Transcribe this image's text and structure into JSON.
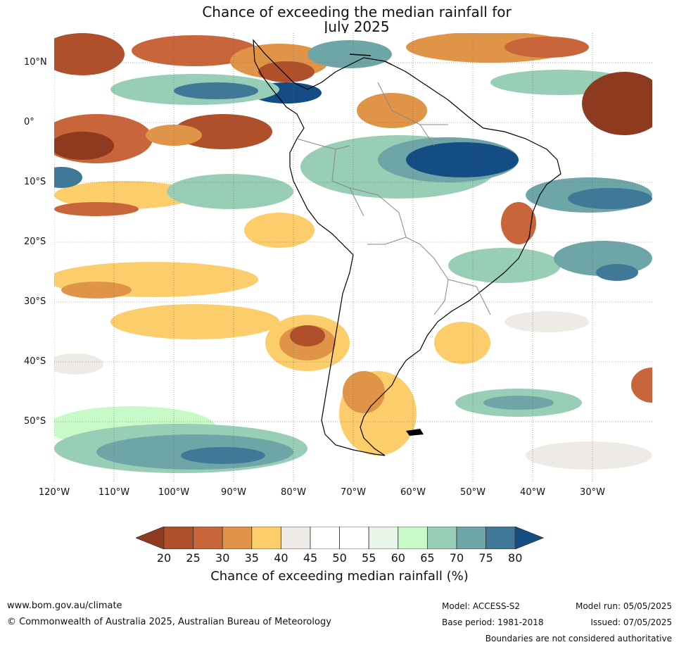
{
  "title_line1": "Chance of exceeding the median rainfall for",
  "title_line2": "July 2025",
  "map": {
    "lat_labels": [
      "10°N",
      "0°",
      "10°S",
      "20°S",
      "30°S",
      "40°S",
      "50°S"
    ],
    "lon_labels": [
      "120°W",
      "110°W",
      "100°W",
      "90°W",
      "80°W",
      "70°W",
      "60°W",
      "50°W",
      "40°W",
      "30°W"
    ]
  },
  "colorbar": {
    "ticks": [
      "20",
      "25",
      "30",
      "35",
      "40",
      "45",
      "50",
      "55",
      "60",
      "65",
      "70",
      "75",
      "80"
    ],
    "colors": [
      "#8e3a1e",
      "#b0502a",
      "#c9653a",
      "#e09447",
      "#fccd6b",
      "#eeebe7",
      "#ffffff",
      "#ffffff",
      "#e8f6ea",
      "#c8fac8",
      "#98cdb6",
      "#6ea6a7",
      "#3f7997",
      "#134d84"
    ],
    "title": "Chance of exceeding median rainfall (%)"
  },
  "footer": {
    "url": "www.bom.gov.au/climate",
    "copyright": "© Commonwealth of Australia 2025, Australian Bureau of Meteorology",
    "model": "Model: ACCESS-S2",
    "base_period": "Base period: 1981-2018",
    "model_run": "Model run: 05/05/2025",
    "issued": "Issued: 07/05/2025",
    "boundaries": "Boundaries are not considered authoritative"
  }
}
